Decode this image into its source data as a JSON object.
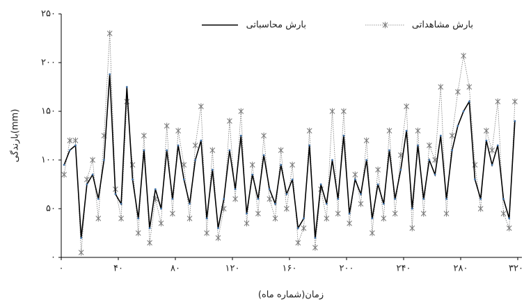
{
  "chart_data": {
    "type": "line",
    "xlabel": "زمان(شماره ماه)",
    "ylabel": "بارندگی(mm)",
    "x": [
      2,
      6,
      10,
      14,
      18,
      22,
      26,
      30,
      34,
      38,
      42,
      46,
      50,
      54,
      58,
      62,
      66,
      70,
      74,
      78,
      82,
      86,
      90,
      94,
      98,
      102,
      106,
      110,
      114,
      118,
      122,
      126,
      130,
      134,
      138,
      142,
      146,
      150,
      154,
      158,
      162,
      166,
      170,
      174,
      178,
      182,
      186,
      190,
      194,
      198,
      202,
      206,
      210,
      214,
      218,
      222,
      226,
      230,
      234,
      238,
      242,
      246,
      250,
      254,
      258,
      262,
      266,
      270,
      274,
      278,
      282,
      286,
      290,
      294,
      298,
      302,
      306,
      310,
      314,
      318
    ],
    "series": [
      {
        "name": "بارش مشاهداتی",
        "color": "#777777",
        "marker": "asterisk",
        "values": [
          85,
          120,
          120,
          5,
          80,
          100,
          40,
          125,
          230,
          70,
          40,
          160,
          95,
          25,
          125,
          15,
          60,
          35,
          135,
          45,
          130,
          95,
          40,
          115,
          155,
          25,
          110,
          20,
          50,
          140,
          60,
          150,
          35,
          95,
          45,
          125,
          60,
          40,
          110,
          50,
          95,
          15,
          30,
          130,
          10,
          70,
          40,
          150,
          45,
          150,
          35,
          85,
          55,
          120,
          25,
          90,
          40,
          130,
          45,
          105,
          155,
          30,
          130,
          45,
          115,
          100,
          175,
          45,
          125,
          170,
          207,
          175,
          95,
          50,
          130,
          110,
          160,
          45,
          30,
          160
        ]
      },
      {
        "name": "بارش محاسباتی",
        "color": "#000000",
        "marker": "dot",
        "marker_color": "#3b6ea5",
        "values": [
          95,
          110,
          115,
          20,
          75,
          85,
          60,
          100,
          188,
          65,
          55,
          175,
          80,
          40,
          110,
          30,
          70,
          50,
          110,
          60,
          115,
          80,
          55,
          100,
          120,
          40,
          90,
          30,
          60,
          110,
          70,
          125,
          45,
          85,
          60,
          105,
          70,
          55,
          95,
          65,
          80,
          30,
          40,
          115,
          20,
          75,
          55,
          100,
          60,
          125,
          45,
          80,
          65,
          100,
          40,
          75,
          55,
          110,
          60,
          90,
          130,
          50,
          115,
          60,
          100,
          85,
          125,
          60,
          110,
          135,
          150,
          160,
          80,
          60,
          120,
          95,
          115,
          60,
          40,
          140
        ]
      }
    ],
    "xlim": [
      0,
      320
    ],
    "xticks": [
      {
        "value": 0,
        "label": "۰"
      },
      {
        "value": 40,
        "label": "۴۰"
      },
      {
        "value": 80,
        "label": "۸۰"
      },
      {
        "value": 120,
        "label": "۱۲۰"
      },
      {
        "value": 160,
        "label": "۱۶۰"
      },
      {
        "value": 200,
        "label": "۲۰۰"
      },
      {
        "value": 240,
        "label": "۲۴۰"
      },
      {
        "value": 280,
        "label": "۲۸۰"
      },
      {
        "value": 320,
        "label": "۳۲۰"
      }
    ],
    "ylim": [
      0,
      250
    ],
    "yticks": [
      {
        "value": 0,
        "label": "۰"
      },
      {
        "value": 50,
        "label": "۵۰"
      },
      {
        "value": 100,
        "label": "۱۰۰"
      },
      {
        "value": 150,
        "label": "۱۵۰"
      },
      {
        "value": 200,
        "label": "۲۰۰"
      },
      {
        "value": 250,
        "label": "۲۵۰"
      }
    ]
  }
}
